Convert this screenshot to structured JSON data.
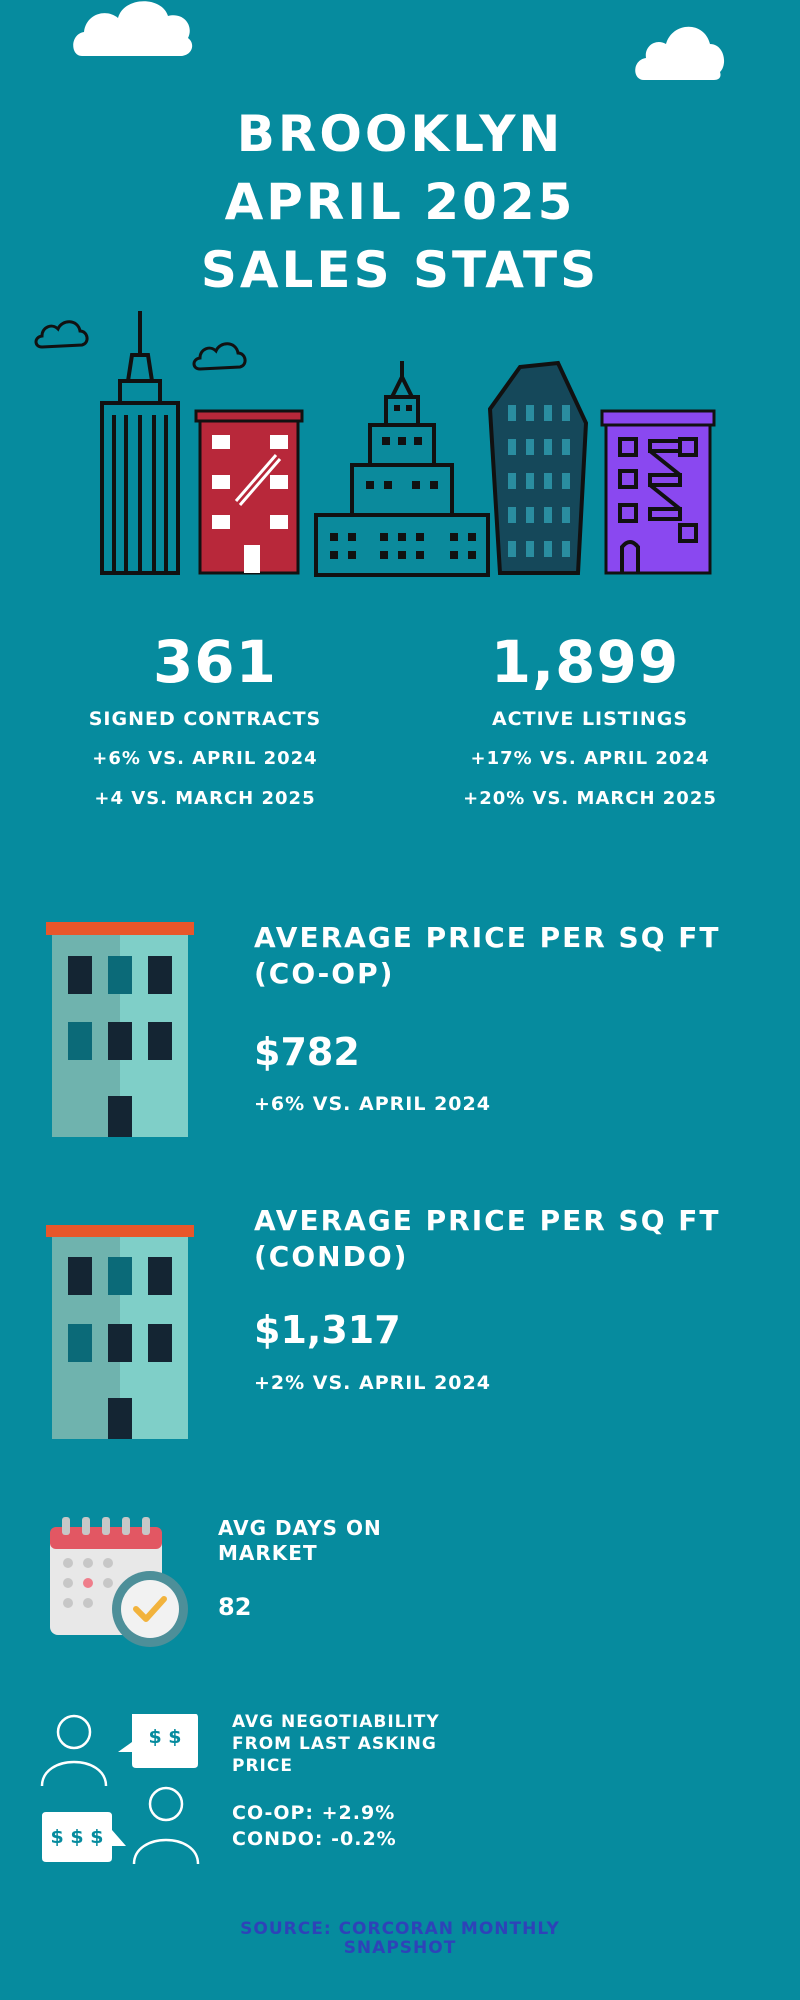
{
  "header": {
    "title_line1": "BROOKLYN",
    "title_line2": "APRIL 2025",
    "title_line3": "SALES STATS"
  },
  "stats": {
    "contracts": {
      "value": "361",
      "label": "SIGNED CONTRACTS",
      "change1": "+6% VS. APRIL 2024",
      "change2": "+4 VS. MARCH 2025"
    },
    "listings": {
      "value": "1,899",
      "label": "ACTIVE LISTINGS",
      "change1": "+17% VS. APRIL 2024",
      "change2": "+20% VS. MARCH 2025"
    }
  },
  "coop": {
    "title_line1": "AVERAGE PRICE PER SQ FT",
    "title_line2": "(CO-OP)",
    "value": "$782",
    "change": "+6% VS. APRIL 2024"
  },
  "condo": {
    "title_line1": "AVERAGE PRICE PER SQ FT",
    "title_line2": "(CONDO)",
    "value": "$1,317",
    "change": "+2% VS. APRIL 2024"
  },
  "days": {
    "title_line1": "AVG DAYS ON",
    "title_line2": "MARKET",
    "value": "82"
  },
  "negotiability": {
    "title_line1": "AVG NEGOTIABILITY",
    "title_line2": "FROM LAST ASKING",
    "title_line3": "PRICE",
    "coop": "CO-OP: +2.9%",
    "condo": "CONDO: -0.2%",
    "bubble1": "$ $",
    "bubble2": "$ $ $"
  },
  "source": {
    "line1": "SOURCE: CORCORAN MONTHLY",
    "line2": "SNAPSHOT"
  },
  "colors": {
    "background": "#068b9e",
    "red_building": "#b8283a",
    "purple_building": "#8a48f0",
    "building_teal": "#7fcfc8",
    "roof_orange": "#e8562a",
    "source_text": "#2e43b8"
  },
  "icons": [
    "cloud-icon",
    "skyline-illustration",
    "apartment-building-icon",
    "calendar-clock-icon",
    "negotiation-people-icon"
  ]
}
